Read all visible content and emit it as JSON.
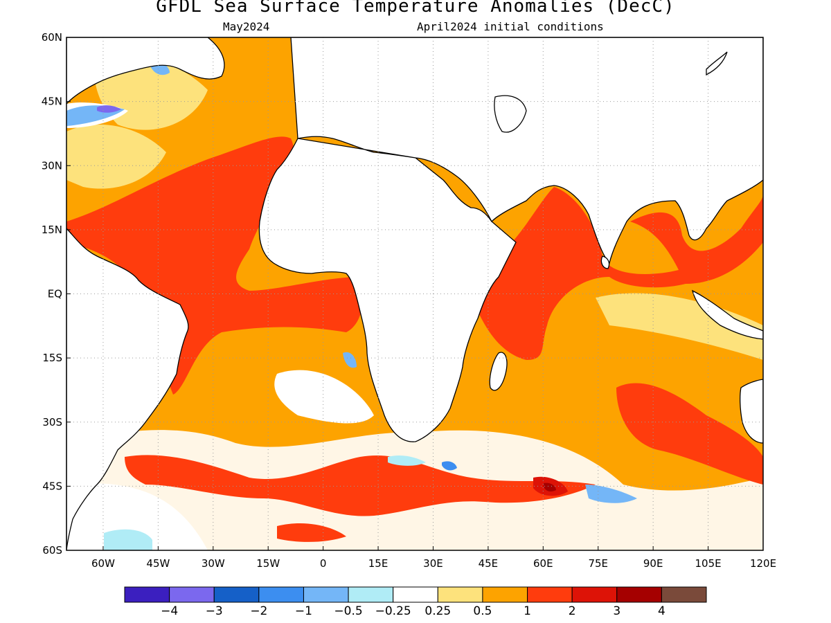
{
  "title": "GFDL Sea Surface Temperature Anomalies (DecC)",
  "subtitle_left": "May2024",
  "subtitle_right": "April2024 initial conditions",
  "map": {
    "lon_range": [
      -70,
      120
    ],
    "lat_range": [
      -60,
      60
    ],
    "lat_ticks": [
      {
        "value": 60,
        "label": "60N"
      },
      {
        "value": 45,
        "label": "45N"
      },
      {
        "value": 30,
        "label": "30N"
      },
      {
        "value": 15,
        "label": "15N"
      },
      {
        "value": 0,
        "label": "EQ"
      },
      {
        "value": -15,
        "label": "15S"
      },
      {
        "value": -30,
        "label": "30S"
      },
      {
        "value": -45,
        "label": "45S"
      },
      {
        "value": -60,
        "label": "60S"
      }
    ],
    "lon_ticks": [
      {
        "value": -60,
        "label": "60W"
      },
      {
        "value": -45,
        "label": "45W"
      },
      {
        "value": -30,
        "label": "30W"
      },
      {
        "value": -15,
        "label": "15W"
      },
      {
        "value": 0,
        "label": "0"
      },
      {
        "value": 15,
        "label": "15E"
      },
      {
        "value": 30,
        "label": "30E"
      },
      {
        "value": 45,
        "label": "45E"
      },
      {
        "value": 60,
        "label": "60E"
      },
      {
        "value": 75,
        "label": "75E"
      },
      {
        "value": 90,
        "label": "90E"
      },
      {
        "value": 105,
        "label": "105E"
      },
      {
        "value": 120,
        "label": "120E"
      }
    ],
    "grid": "dotted"
  },
  "colorbar": {
    "colors": [
      "#3b1fbf",
      "#7b68ee",
      "#1560c8",
      "#3c8ef0",
      "#74b6f7",
      "#b0ecf6",
      "#ffffff",
      "#fde27c",
      "#fda300",
      "#ff3c0d",
      "#dd1307",
      "#a50000",
      "#7a4a3a"
    ],
    "labels": [
      "-4",
      "-3",
      "-2",
      "-1",
      "-0.5",
      "-0.25",
      "0.25",
      "0.5",
      "1",
      "2",
      "3",
      "4"
    ]
  }
}
